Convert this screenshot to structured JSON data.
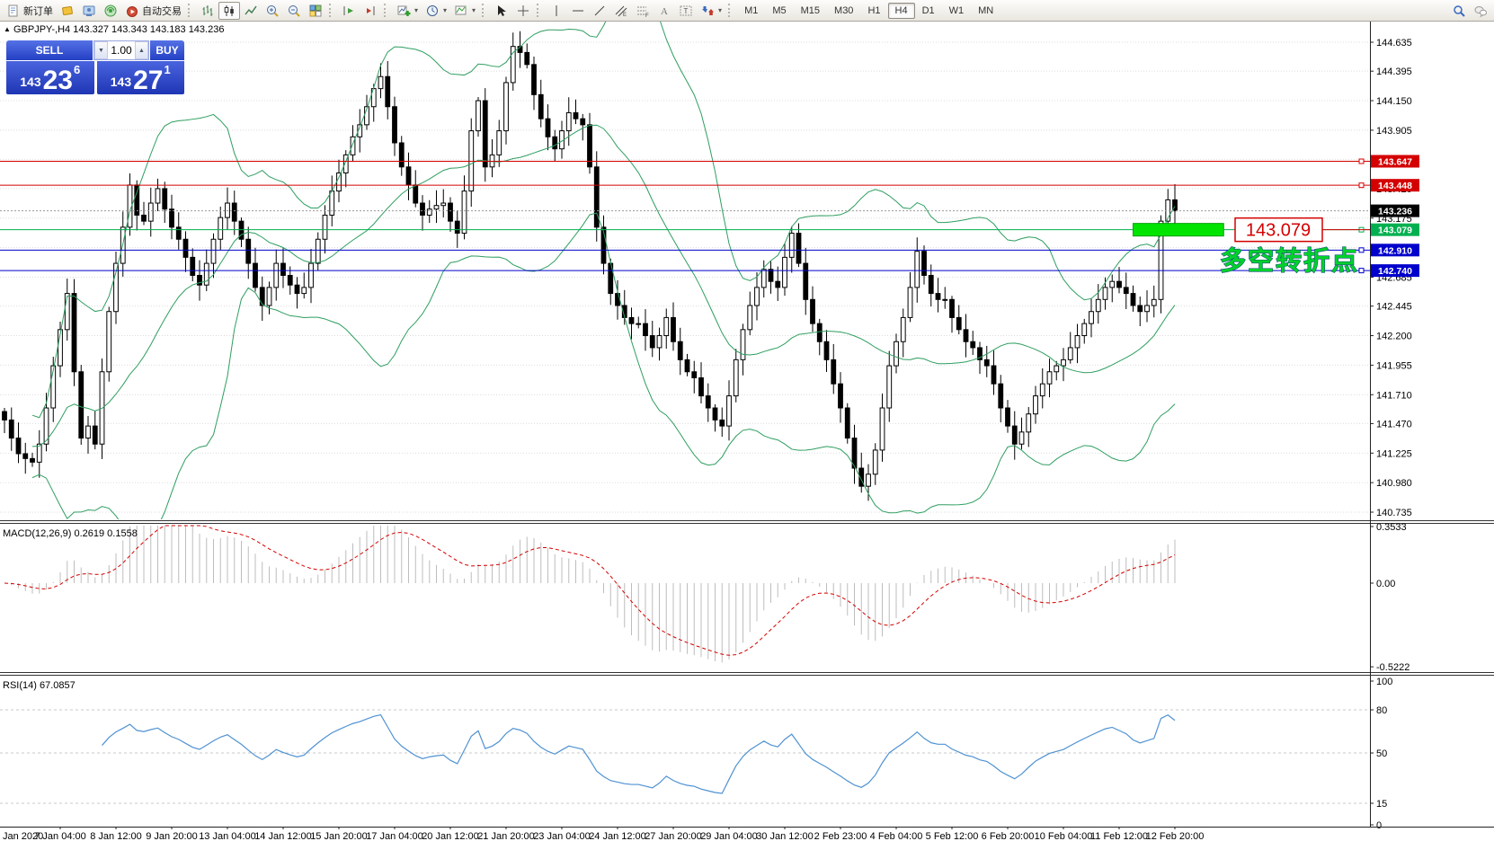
{
  "toolbar": {
    "new_order": "新订单",
    "autotrade": "自动交易",
    "timeframes": [
      "M1",
      "M5",
      "M15",
      "M30",
      "H1",
      "H4",
      "D1",
      "W1",
      "MN"
    ],
    "active_timeframe": "H4"
  },
  "quote_panel": {
    "sell_label": "SELL",
    "buy_label": "BUY",
    "volume": "1.00",
    "sell_prefix": "143",
    "sell_big": "23",
    "sell_sup": "6",
    "buy_prefix": "143",
    "buy_big": "27",
    "buy_sup": "1"
  },
  "chart_header": {
    "marker": "▲",
    "symbol": "GBPJPY-,H4",
    "ohlc": "143.327 143.343 143.183 143.236"
  },
  "annotations": {
    "price_label_box": "143.079",
    "cn_text": "多空转折点",
    "green_rect": {
      "price": 143.079,
      "bar_start": 162,
      "bar_end": 175
    },
    "colors": {
      "annotation_green": "#00e400",
      "cn_green": "#00d22a",
      "box_red": "#d40000"
    }
  },
  "chart_data": {
    "type": "candlestick",
    "symbol": "GBPJPY",
    "timeframe": "H4",
    "title_ohlc": [
      143.327,
      143.343,
      143.183,
      143.236
    ],
    "current_price": 143.236,
    "price_axis_ticks": [
      144.635,
      144.395,
      144.15,
      143.905,
      143.66,
      143.42,
      143.175,
      142.93,
      142.685,
      142.445,
      142.2,
      141.955,
      141.71,
      141.47,
      141.225,
      140.98,
      140.735
    ],
    "hlines": [
      {
        "price": 143.647,
        "color": "#d40000"
      },
      {
        "price": 143.448,
        "color": "#d40000"
      },
      {
        "price": 143.079,
        "color": "#00b050"
      },
      {
        "price": 142.91,
        "color": "#0000cc"
      },
      {
        "price": 142.74,
        "color": "#0000cc"
      }
    ],
    "candles": {
      "closes": [
        141.5,
        141.35,
        141.22,
        141.18,
        141.15,
        141.3,
        141.6,
        141.95,
        142.25,
        142.55,
        141.9,
        141.35,
        141.45,
        141.3,
        141.9,
        142.4,
        142.8,
        143.1,
        143.45,
        143.2,
        143.15,
        143.3,
        143.42,
        143.25,
        143.1,
        143.0,
        142.85,
        142.7,
        142.62,
        142.8,
        143.0,
        143.18,
        143.3,
        143.15,
        143.0,
        142.8,
        142.6,
        142.45,
        142.6,
        142.8,
        142.7,
        142.62,
        142.55,
        142.6,
        142.8,
        143.0,
        143.2,
        143.4,
        143.55,
        143.7,
        143.85,
        143.95,
        144.1,
        144.25,
        144.35,
        144.1,
        143.8,
        143.6,
        143.45,
        143.3,
        143.2,
        143.25,
        143.28,
        143.3,
        143.15,
        143.05,
        143.4,
        143.9,
        144.15,
        143.6,
        143.7,
        143.9,
        144.3,
        144.6,
        144.55,
        144.45,
        144.2,
        144.0,
        143.85,
        143.75,
        143.9,
        144.05,
        144.0,
        143.95,
        143.6,
        143.1,
        142.8,
        142.55,
        142.45,
        142.35,
        142.3,
        142.3,
        142.2,
        142.1,
        142.2,
        142.35,
        142.15,
        142.0,
        141.9,
        141.85,
        141.7,
        141.6,
        141.5,
        141.45,
        141.7,
        142.0,
        142.25,
        142.45,
        142.6,
        142.75,
        142.65,
        142.6,
        142.85,
        143.05,
        142.8,
        142.5,
        142.3,
        142.15,
        142.0,
        141.8,
        141.6,
        141.35,
        141.1,
        140.95,
        141.05,
        141.25,
        141.6,
        141.95,
        142.15,
        142.35,
        142.6,
        142.9,
        142.7,
        142.55,
        142.5,
        142.5,
        142.35,
        142.25,
        142.15,
        142.1,
        142.0,
        141.95,
        141.8,
        141.6,
        141.45,
        141.3,
        141.4,
        141.55,
        141.7,
        141.8,
        141.9,
        141.95,
        142.0,
        142.1,
        142.2,
        142.3,
        142.4,
        142.5,
        142.6,
        142.65,
        142.6,
        142.55,
        142.45,
        142.4,
        142.45,
        142.5,
        143.15,
        143.327,
        143.236
      ]
    },
    "bollinger": {
      "period": 20,
      "deviation": 2,
      "color": "#2e9e60"
    },
    "time_labels": [
      "Jan 2020",
      "7 Jan 04:00",
      "8 Jan 12:00",
      "9 Jan 20:00",
      "13 Jan 04:00",
      "14 Jan 12:00",
      "15 Jan 20:00",
      "17 Jan 04:00",
      "20 Jan 12:00",
      "21 Jan 20:00",
      "23 Jan 04:00",
      "24 Jan 12:00",
      "27 Jan 20:00",
      "29 Jan 04:00",
      "30 Jan 12:00",
      "2 Feb 23:00",
      "4 Feb 04:00",
      "5 Feb 12:00",
      "6 Feb 20:00",
      "10 Feb 04:00",
      "11 Feb 12:00",
      "12 Feb 20:00"
    ],
    "macd": {
      "label": "MACD(12,26,9)",
      "values_text": "0.2619 0.1558",
      "axis_labels": [
        "0.3533",
        "0.00",
        "-0.5222"
      ],
      "axis_values": [
        0.3533,
        0,
        -0.5222
      ],
      "hist_color": "#bdbdbd",
      "signal_color": "#d40000"
    },
    "rsi": {
      "label": "RSI(14)",
      "value_text": "67.0857",
      "levels": [
        100,
        80,
        50,
        15,
        0
      ],
      "dashed_levels": [
        80,
        50,
        15
      ],
      "line_color": "#4f92d2"
    }
  }
}
